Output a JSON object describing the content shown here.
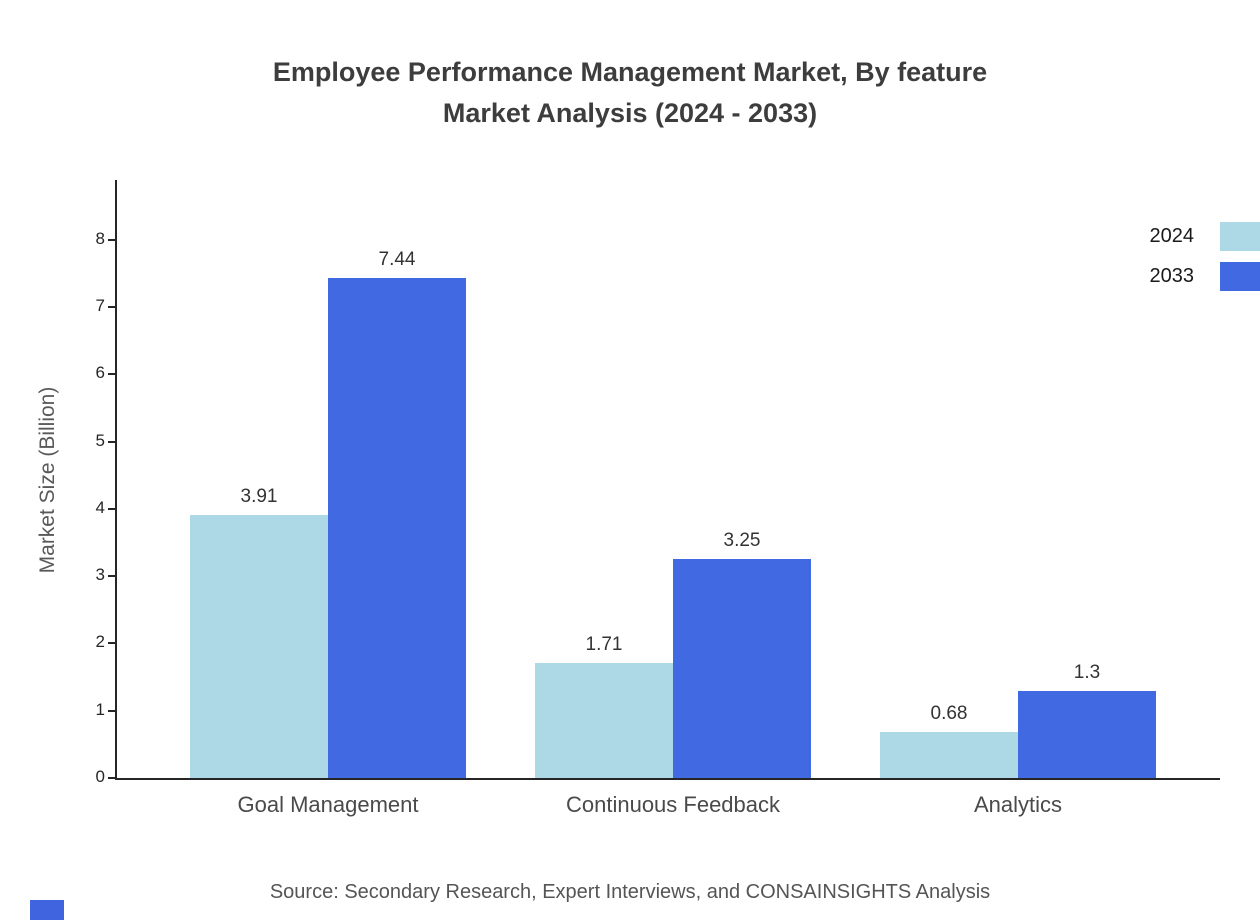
{
  "title": {
    "line1": "Employee Performance Management Market, By feature",
    "line2": "Market Analysis (2024 - 2033)"
  },
  "source": "Source: Secondary Research, Expert Interviews, and CONSAINSIGHTS Analysis",
  "chart_data": {
    "type": "bar",
    "title": "Employee Performance Management Market, By feature Market Analysis (2024 - 2033)",
    "xlabel": "",
    "ylabel": "Market Size (Billion)",
    "categories": [
      "Goal Management",
      "Continuous Feedback",
      "Analytics"
    ],
    "series": [
      {
        "name": "2024",
        "color": "#ADD8E6",
        "values": [
          3.91,
          1.71,
          0.68
        ],
        "labels": [
          "3.91",
          "1.71",
          "0.68"
        ]
      },
      {
        "name": "2033",
        "color": "#4169E1",
        "values": [
          7.44,
          3.25,
          1.3
        ],
        "labels": [
          "7.44",
          "3.25",
          "1.3"
        ]
      }
    ],
    "ylim": [
      0,
      8.89
    ],
    "yticks": [
      0,
      1,
      2,
      3,
      4,
      5,
      6,
      7,
      8
    ],
    "grid": false,
    "legend_position": "top-right"
  }
}
